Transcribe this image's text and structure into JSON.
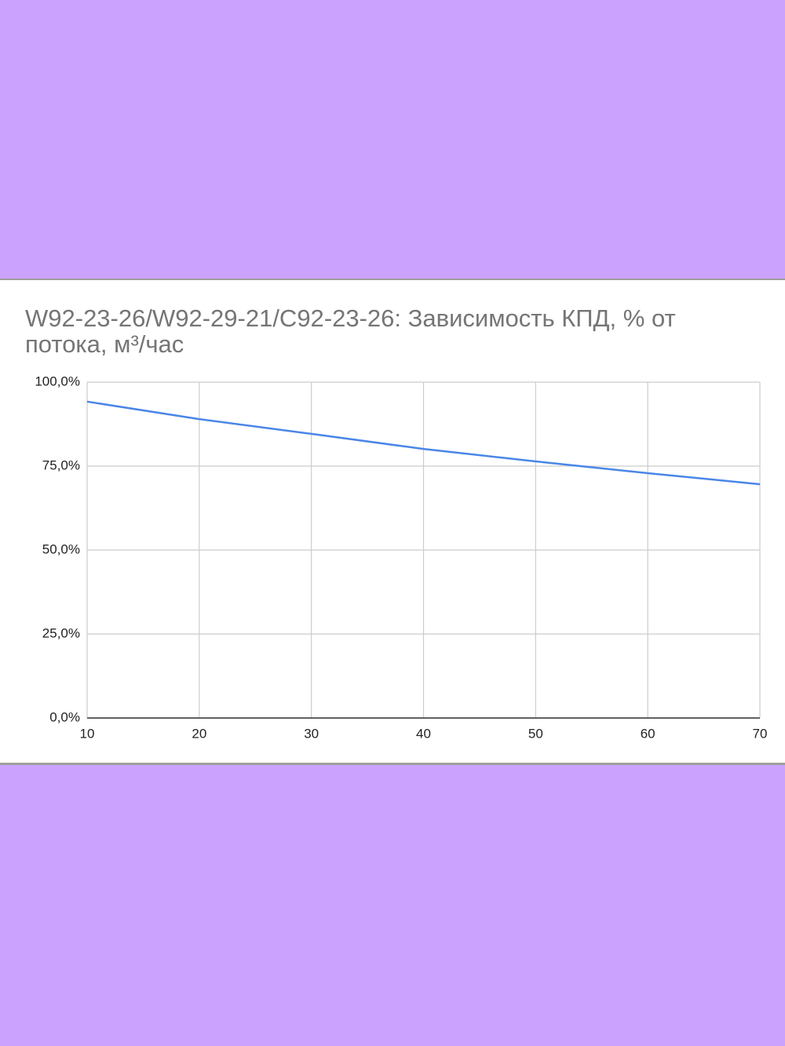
{
  "chart_data": {
    "type": "line",
    "title": "W92-23-26/W92-29-21/C92-23-26: Зависимость КПД, % от потока, м³/час",
    "x": [
      10,
      20,
      30,
      40,
      50,
      60,
      70
    ],
    "series": [
      {
        "name": "КПД",
        "color": "#4a86e8",
        "values": [
          94.2,
          89.0,
          84.6,
          80.1,
          76.4,
          72.9,
          69.6
        ]
      }
    ],
    "xlim": [
      10,
      70
    ],
    "xticks": [
      10,
      20,
      30,
      40,
      50,
      60,
      70
    ],
    "ylim": [
      0,
      100
    ],
    "yticks": [
      {
        "value": 0,
        "label": "0,0%"
      },
      {
        "value": 25,
        "label": "25,0%"
      },
      {
        "value": 50,
        "label": "50,0%"
      },
      {
        "value": 75,
        "label": "75,0%"
      },
      {
        "value": 100,
        "label": "100,0%"
      }
    ],
    "grid": true
  }
}
